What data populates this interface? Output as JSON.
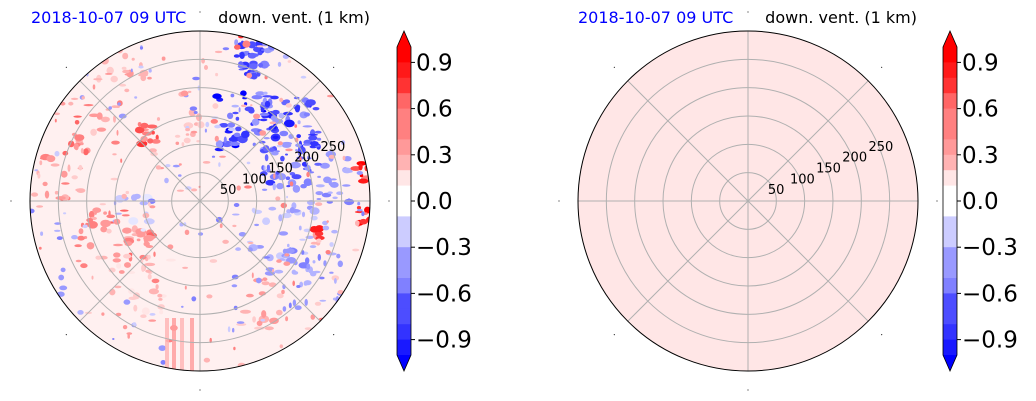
{
  "chart_data": [
    {
      "type": "heatmap",
      "projection": "polar",
      "title_left": "2018-10-07 09 UTC",
      "title_right": "down. vent. (1 km)",
      "title_left_color": "#0000ff",
      "radial_ticks": [
        "50",
        "100",
        "150",
        "200",
        "250"
      ],
      "radial_values": [
        50,
        100,
        150,
        200,
        250
      ],
      "rlim": [
        0,
        300
      ],
      "angular_gridlines_deg": [
        0,
        45,
        90,
        135,
        180,
        225,
        270,
        315
      ],
      "grid": true,
      "field": "noisy",
      "colorbar": {
        "ticks": [
          "0.9",
          "0.6",
          "0.3",
          "0.0",
          "−0.3",
          "−0.6",
          "−0.9"
        ],
        "tick_values": [
          0.9,
          0.6,
          0.3,
          0.0,
          -0.3,
          -0.6,
          -0.9
        ],
        "range": [
          -1.0,
          1.0
        ],
        "extend": "both",
        "cmap": "bwr"
      }
    },
    {
      "type": "heatmap",
      "projection": "polar",
      "title_left": "2018-10-07 09 UTC",
      "title_right": "down. vent. (1 km)",
      "title_left_color": "#0000ff",
      "radial_ticks": [
        "50",
        "100",
        "150",
        "200",
        "250"
      ],
      "radial_values": [
        50,
        100,
        150,
        200,
        250
      ],
      "rlim": [
        0,
        300
      ],
      "angular_gridlines_deg": [
        0,
        45,
        90,
        135,
        180,
        225,
        270,
        315
      ],
      "grid": true,
      "field": "uniform",
      "uniform_value": 0.05,
      "colorbar": {
        "ticks": [
          "0.9",
          "0.6",
          "0.3",
          "0.0",
          "−0.3",
          "−0.6",
          "−0.9"
        ],
        "tick_values": [
          0.9,
          0.6,
          0.3,
          0.0,
          -0.3,
          -0.6,
          -0.9
        ],
        "range": [
          -1.0,
          1.0
        ],
        "extend": "both",
        "cmap": "bwr"
      }
    }
  ]
}
